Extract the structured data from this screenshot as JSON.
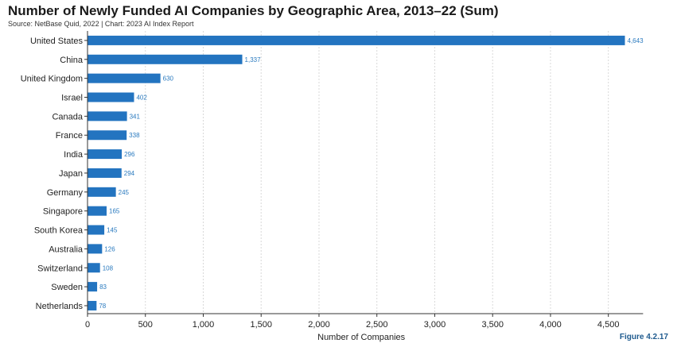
{
  "header": {
    "title": "Number of Newly Funded AI Companies by Geographic Area, 2013–22 (Sum)",
    "source": "Source: NetBase Quid, 2022 | Chart: 2023 AI Index Report"
  },
  "footer": {
    "figure_label": "Figure 4.2.17"
  },
  "colors": {
    "bar": "#2374c0",
    "value_label": "#2a7abf",
    "grid": "#d9d9d9",
    "axis": "#333333"
  },
  "chart_data": {
    "type": "bar",
    "orientation": "horizontal",
    "title": "Number of Newly Funded AI Companies by Geographic Area, 2013–22 (Sum)",
    "xlabel": "Number of Companies",
    "ylabel": "",
    "xlim": [
      0,
      4800
    ],
    "x_ticks": [
      0,
      500,
      1000,
      1500,
      2000,
      2500,
      3000,
      3500,
      4000,
      4500
    ],
    "x_tick_labels": [
      "0",
      "500",
      "1,000",
      "1,500",
      "2,000",
      "2,500",
      "3,000",
      "3,500",
      "4,000",
      "4,500"
    ],
    "grid": "vertical",
    "categories": [
      "United States",
      "China",
      "United Kingdom",
      "Israel",
      "Canada",
      "France",
      "India",
      "Japan",
      "Germany",
      "Singapore",
      "South Korea",
      "Australia",
      "Switzerland",
      "Sweden",
      "Netherlands"
    ],
    "values": [
      4643,
      1337,
      630,
      402,
      341,
      338,
      296,
      294,
      245,
      165,
      145,
      126,
      108,
      83,
      78
    ],
    "value_labels": [
      "4,643",
      "1,337",
      "630",
      "402",
      "341",
      "338",
      "296",
      "294",
      "245",
      "165",
      "145",
      "126",
      "108",
      "83",
      "78"
    ]
  }
}
